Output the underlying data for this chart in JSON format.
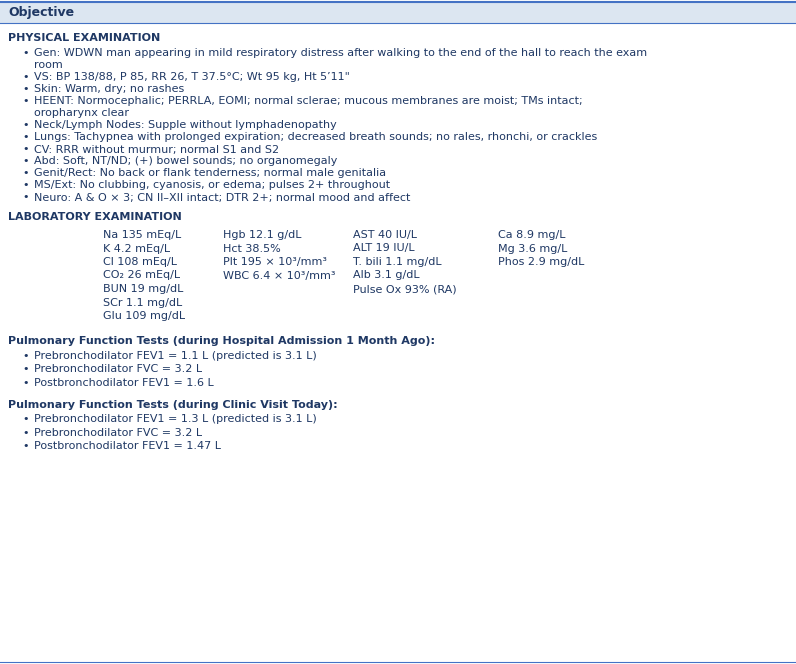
{
  "bg_color": "#ffffff",
  "header_bg": "#dce6f1",
  "header_text": "Objective",
  "header_color": "#1f3864",
  "border_color": "#4472c4",
  "text_color": "#1f3864",
  "fig_width": 7.96,
  "fig_height": 6.64,
  "dpi": 100,
  "section1_title": "PHYSICAL EXAMINATION",
  "section1_bullets": [
    [
      "Gen: WDWN man appearing in mild respiratory distress after walking to the end of the hall to reach the exam",
      "room"
    ],
    [
      "VS: BP 138/88, P 85, RR 26, T 37.5°C; Wt 95 kg, Ht 5’11\""
    ],
    [
      "Skin: Warm, dry; no rashes"
    ],
    [
      "HEENT: Normocephalic; PERRLA, EOMI; normal sclerae; mucous membranes are moist; TMs intact;",
      "oropharynx clear"
    ],
    [
      "Neck/Lymph Nodes: Supple without lymphadenopathy"
    ],
    [
      "Lungs: Tachypnea with prolonged expiration; decreased breath sounds; no rales, rhonchi, or crackles"
    ],
    [
      "CV: RRR without murmur; normal S1 and S2"
    ],
    [
      "Abd: Soft, NT/ND; (+) bowel sounds; no organomegaly"
    ],
    [
      "Genit/Rect: No back or flank tenderness; normal male genitalia"
    ],
    [
      "MS/Ext: No clubbing, cyanosis, or edema; pulses 2+ throughout"
    ],
    [
      "Neuro: A & O × 3; CN II–XII intact; DTR 2+; normal mood and affect"
    ]
  ],
  "section2_title": "LABORATORY EXAMINATION",
  "lab_col1": [
    "Na 135 mEq/L",
    "K 4.2 mEq/L",
    "Cl 108 mEq/L",
    "CO₂ 26 mEq/L",
    "BUN 19 mg/dL",
    "SCr 1.1 mg/dL",
    "Glu 109 mg/dL"
  ],
  "lab_col2": [
    "Hgb 12.1 g/dL",
    "Hct 38.5%",
    "Plt 195 × 10³/mm³",
    "WBC 6.4 × 10³/mm³",
    "",
    "",
    ""
  ],
  "lab_col3": [
    "AST 40 IU/L",
    "ALT 19 IU/L",
    "T. bili 1.1 mg/dL",
    "Alb 3.1 g/dL",
    "Pulse Ox 93% (RA)",
    "",
    ""
  ],
  "lab_col4": [
    "Ca 8.9 mg/L",
    "Mg 3.6 mg/L",
    "Phos 2.9 mg/dL",
    "",
    "",
    "",
    ""
  ],
  "pft1_title": "Pulmonary Function Tests (during Hospital Admission 1 Month Ago):",
  "pft1_bullets": [
    "Prebronchodilator FEV1 = 1.1 L (predicted is 3.1 L)",
    "Prebronchodilator FVC = 3.2 L",
    "Postbronchodilator FEV1 = 1.6 L"
  ],
  "pft2_title": "Pulmonary Function Tests (during Clinic Visit Today):",
  "pft2_bullets": [
    "Prebronchodilator FEV1 = 1.3 L (predicted is 3.1 L)",
    "Prebronchodilator FVC = 3.2 L",
    "Postbronchodilator FEV1 = 1.47 L"
  ]
}
